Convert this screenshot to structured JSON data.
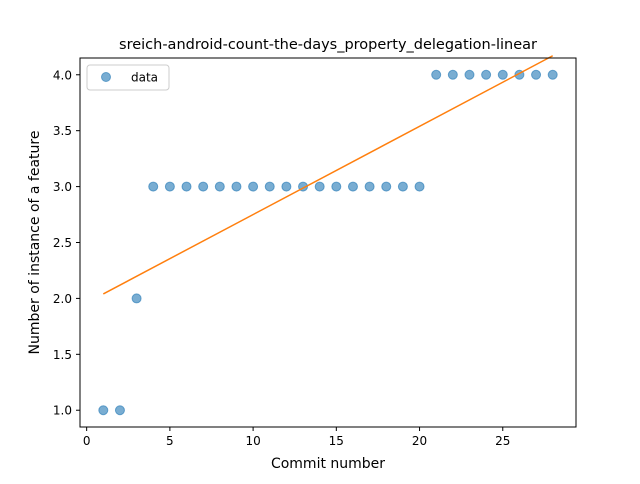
{
  "chart_data": {
    "type": "scatter",
    "title": "sreich-android-count-the-days_property_delegation-linear",
    "xlabel": "Commit number",
    "ylabel": "Number of instance of a feature",
    "xlim": [
      -0.4,
      29.4
    ],
    "ylim": [
      0.85,
      4.15
    ],
    "xticks": [
      0,
      5,
      10,
      15,
      20,
      25
    ],
    "xtick_labels": [
      "0",
      "5",
      "10",
      "15",
      "20",
      "25"
    ],
    "yticks": [
      1.0,
      1.5,
      2.0,
      2.5,
      3.0,
      3.5,
      4.0
    ],
    "ytick_labels": [
      "1.0",
      "1.5",
      "2.0",
      "2.5",
      "3.0",
      "3.5",
      "4.0"
    ],
    "grid": false,
    "legend_position": "top-left",
    "series": [
      {
        "name": "data",
        "kind": "scatter",
        "color": "#1f77b4",
        "x": [
          1,
          2,
          3,
          4,
          5,
          6,
          7,
          8,
          9,
          10,
          11,
          12,
          13,
          14,
          15,
          16,
          17,
          18,
          19,
          20,
          21,
          22,
          23,
          24,
          25,
          26,
          27,
          28
        ],
        "y": [
          1,
          1,
          2,
          3,
          3,
          3,
          3,
          3,
          3,
          3,
          3,
          3,
          3,
          3,
          3,
          3,
          3,
          3,
          3,
          3,
          4,
          4,
          4,
          4,
          4,
          4,
          4,
          4
        ]
      },
      {
        "kind": "line",
        "color": "#ff7f0e",
        "x": [
          1,
          28
        ],
        "y": [
          2.04,
          4.17
        ]
      }
    ]
  }
}
